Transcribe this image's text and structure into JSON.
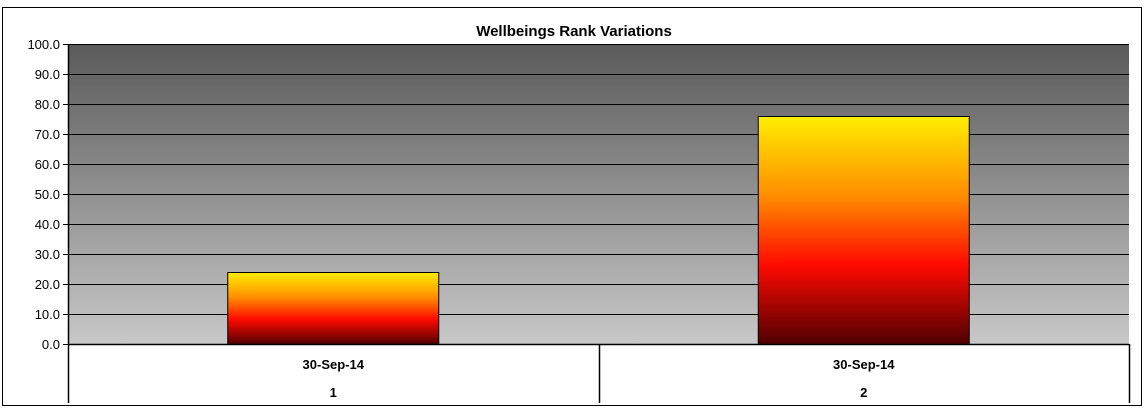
{
  "chart_data": {
    "type": "bar",
    "title": "Wellbeings Rank Variations",
    "categories": [
      {
        "date": "30-Sep-14",
        "index": "1"
      },
      {
        "date": "30-Sep-14",
        "index": "2"
      }
    ],
    "values": [
      24.0,
      76.0
    ],
    "ylim": [
      0,
      100
    ],
    "yticks": [
      "0.0",
      "10.0",
      "20.0",
      "30.0",
      "40.0",
      "50.0",
      "60.0",
      "70.0",
      "80.0",
      "90.0",
      "100.0"
    ],
    "xlabel": "",
    "ylabel": "",
    "grid": true,
    "legend": "none",
    "colors": {
      "plot_top": "#5a5a5a",
      "plot_bottom": "#c8c8c8",
      "bar_top": "#ffee00",
      "bar_mid1": "#ff8c00",
      "bar_mid2": "#ff0a00",
      "bar_bottom": "#4d0000",
      "grid": "#000000"
    }
  }
}
